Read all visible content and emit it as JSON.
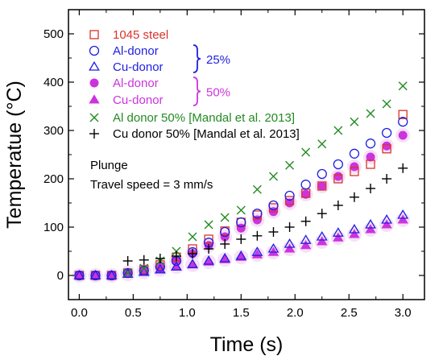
{
  "chart_data": {
    "type": "scatter",
    "xlabel": "Time (s)",
    "ylabel": "Temperatue (°C)",
    "xlim": [
      -0.1,
      3.2
    ],
    "ylim": [
      -50,
      550
    ],
    "xticks": [
      "0.0",
      "0.5",
      "1.0",
      "1.5",
      "2.0",
      "2.5",
      "3.0"
    ],
    "yticks": [
      "0",
      "100",
      "200",
      "300",
      "400",
      "500"
    ],
    "group_labels": [
      "25%",
      "50%"
    ],
    "annotation": {
      "line1": "Plunge",
      "line2": "Travel speed = 3 mm/s"
    },
    "series": [
      {
        "name": "1045 steel",
        "marker": "square-open",
        "color": "#d9332b",
        "x": [
          0,
          0.15,
          0.3,
          0.45,
          0.6,
          0.75,
          0.9,
          1.05,
          1.2,
          1.35,
          1.5,
          1.65,
          1.8,
          1.95,
          2.1,
          2.25,
          2.4,
          2.55,
          2.7,
          2.85,
          3.0
        ],
        "y": [
          0,
          0,
          0,
          5,
          12,
          22,
          38,
          55,
          75,
          92,
          110,
          125,
          140,
          155,
          170,
          185,
          200,
          215,
          230,
          262,
          333
        ]
      },
      {
        "name": "Al-donor",
        "marker": "circle-open",
        "color": "#1f1fe0",
        "x": [
          0,
          0.15,
          0.3,
          0.45,
          0.6,
          0.75,
          0.9,
          1.05,
          1.2,
          1.35,
          1.5,
          1.65,
          1.8,
          1.95,
          2.1,
          2.25,
          2.4,
          2.55,
          2.7,
          2.85,
          3.0
        ],
        "y": [
          0,
          0,
          0,
          5,
          10,
          18,
          30,
          48,
          68,
          90,
          110,
          128,
          145,
          165,
          188,
          210,
          230,
          252,
          273,
          295,
          318
        ]
      },
      {
        "name": "Cu-donor",
        "marker": "triangle-open",
        "color": "#1f1fe0",
        "x": [
          0,
          0.15,
          0.3,
          0.45,
          0.6,
          0.75,
          0.9,
          1.05,
          1.2,
          1.35,
          1.5,
          1.65,
          1.8,
          1.95,
          2.1,
          2.25,
          2.4,
          2.55,
          2.7,
          2.85,
          3.0
        ],
        "y": [
          0,
          0,
          0,
          3,
          7,
          12,
          18,
          23,
          30,
          35,
          40,
          48,
          55,
          65,
          73,
          80,
          88,
          95,
          105,
          115,
          125
        ]
      },
      {
        "name": "Al-donor",
        "marker": "circle-filled",
        "color": "#cc33dd",
        "x": [
          0,
          0.15,
          0.3,
          0.45,
          0.6,
          0.75,
          0.9,
          1.05,
          1.2,
          1.35,
          1.5,
          1.65,
          1.8,
          1.95,
          2.1,
          2.25,
          2.4,
          2.55,
          2.7,
          2.85,
          3.0
        ],
        "y": [
          0,
          0,
          0,
          5,
          10,
          18,
          30,
          45,
          62,
          80,
          98,
          115,
          132,
          150,
          168,
          185,
          205,
          225,
          245,
          268,
          290
        ]
      },
      {
        "name": "Cu-donor",
        "marker": "triangle-filled",
        "color": "#cc33dd",
        "x": [
          0,
          0.15,
          0.3,
          0.45,
          0.6,
          0.75,
          0.9,
          1.05,
          1.2,
          1.35,
          1.5,
          1.65,
          1.8,
          1.95,
          2.1,
          2.25,
          2.4,
          2.55,
          2.7,
          2.85,
          3.0
        ],
        "y": [
          0,
          0,
          0,
          3,
          7,
          12,
          18,
          22,
          28,
          33,
          38,
          43,
          48,
          55,
          62,
          70,
          78,
          85,
          95,
          105,
          115
        ]
      },
      {
        "name": "Al donor 50% [Mandal et al. 2013]",
        "marker": "x",
        "color": "#228b22",
        "x": [
          0.45,
          0.6,
          0.75,
          0.9,
          1.05,
          1.2,
          1.35,
          1.5,
          1.65,
          1.8,
          1.95,
          2.1,
          2.25,
          2.4,
          2.55,
          2.7,
          2.85,
          3.0
        ],
        "y": [
          5,
          15,
          30,
          50,
          80,
          105,
          120,
          135,
          178,
          205,
          228,
          255,
          272,
          300,
          318,
          335,
          355,
          392
        ]
      },
      {
        "name": "Cu donor 50% [Mandal et al. 2013]",
        "marker": "plus",
        "color": "#000000",
        "x": [
          0.45,
          0.6,
          0.75,
          0.9,
          1.05,
          1.2,
          1.35,
          1.5,
          1.65,
          1.8,
          1.95,
          2.1,
          2.25,
          2.4,
          2.55,
          2.7,
          2.85,
          3.0
        ],
        "y": [
          30,
          32,
          35,
          40,
          45,
          55,
          65,
          75,
          82,
          90,
          100,
          112,
          128,
          145,
          162,
          180,
          200,
          222
        ]
      }
    ]
  }
}
